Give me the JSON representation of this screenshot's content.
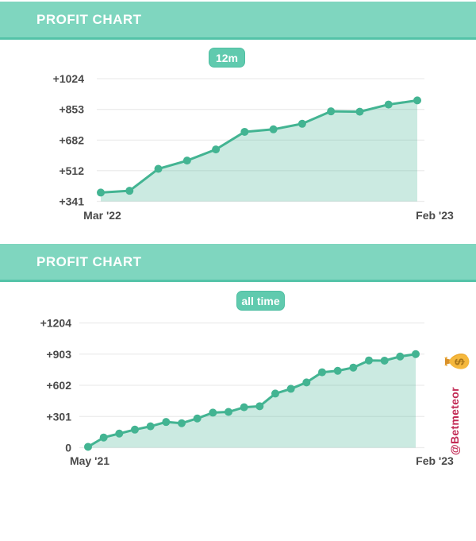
{
  "cards": [
    {
      "title": "PROFIT CHART",
      "badge": "12m"
    },
    {
      "title": "PROFIT CHART",
      "badge": "all time"
    }
  ],
  "watermark": {
    "handle": "@Betmeteor",
    "icon": "money-bag-icon"
  },
  "colors": {
    "header_bg": "#7fd6bf",
    "header_border": "#54c3a8",
    "badge_bg": "#60caae",
    "line": "#43b492",
    "fill": "#43b492",
    "fill_opacity": 0.28,
    "grid": "#ececec",
    "tick_text": "#4a4a4a",
    "watermark_text": "#c22a55",
    "bag_gold": "#f5b83d"
  },
  "chart_data": [
    {
      "type": "area",
      "title": "PROFIT CHART",
      "period": "12m",
      "x_tick_labels": [
        "Mar '22",
        "Feb '23"
      ],
      "n_points": 12,
      "values": [
        390,
        400,
        522,
        568,
        630,
        728,
        742,
        773,
        842,
        840,
        880,
        903
      ],
      "y_ticks": [
        {
          "label": "+1024",
          "value": 1024
        },
        {
          "label": "+853",
          "value": 853
        },
        {
          "label": "+682",
          "value": 682
        },
        {
          "label": "+512",
          "value": 512
        },
        {
          "label": "+341",
          "value": 341
        }
      ],
      "ylim": [
        341,
        1024
      ],
      "grid": "horizontal-only",
      "legend": "none"
    },
    {
      "type": "area",
      "title": "PROFIT CHART",
      "period": "all time",
      "x_tick_labels": [
        "May '21",
        "Feb '23"
      ],
      "n_points": 22,
      "values": [
        8,
        98,
        136,
        174,
        206,
        248,
        236,
        282,
        338,
        345,
        390,
        400,
        522,
        568,
        630,
        728,
        742,
        773,
        842,
        840,
        880,
        903
      ],
      "y_ticks": [
        {
          "label": "+1204",
          "value": 1204
        },
        {
          "label": "+903",
          "value": 903
        },
        {
          "label": "+602",
          "value": 602
        },
        {
          "label": "+301",
          "value": 301
        },
        {
          "label": "0",
          "value": 0
        }
      ],
      "ylim": [
        0,
        1204
      ],
      "grid": "horizontal-only",
      "legend": "none"
    }
  ]
}
